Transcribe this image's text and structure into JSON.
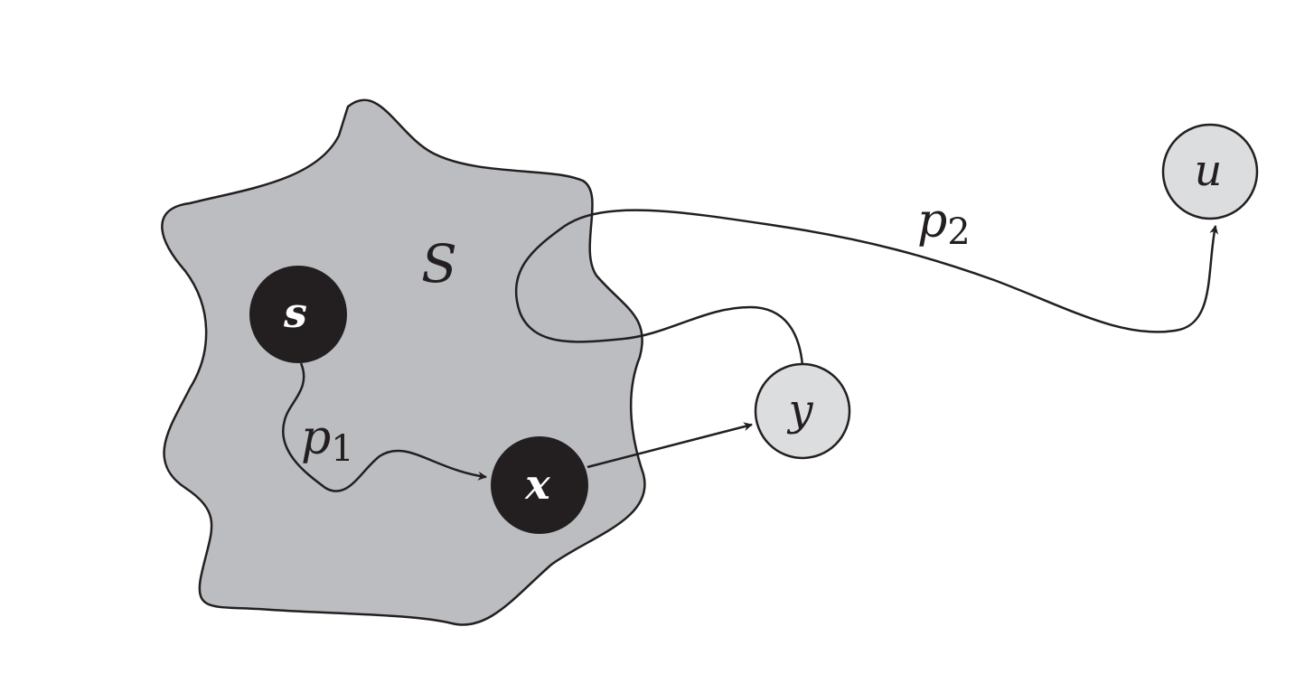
{
  "colors": {
    "region_fill": "#bcbdc0",
    "light_node_fill": "#dcddde",
    "dark_node_fill": "#231f20",
    "stroke": "#231f20"
  },
  "region": {
    "label": "S"
  },
  "nodes": {
    "s": {
      "label": "s"
    },
    "x": {
      "label": "x"
    },
    "y": {
      "label": "y"
    },
    "u": {
      "label": "u"
    }
  },
  "paths": {
    "p1": {
      "base": "p",
      "sub": "1"
    },
    "p2": {
      "base": "p",
      "sub": "2"
    }
  }
}
